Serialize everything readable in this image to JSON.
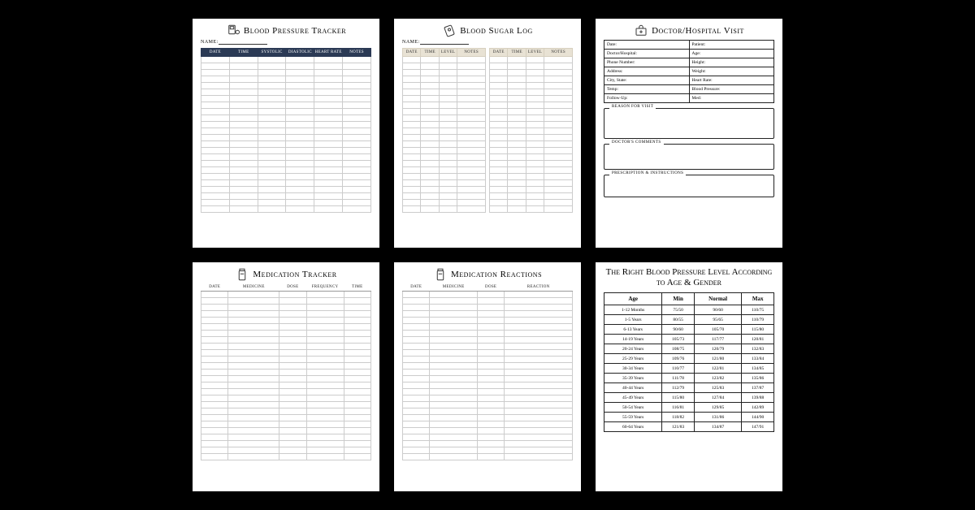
{
  "bp_tracker": {
    "title": "Blood Pressure Tracker",
    "name_label": "NAME:",
    "columns": [
      "date",
      "time",
      "systolic",
      "diastolic",
      "heart rate",
      "notes"
    ],
    "blank_rows": 24
  },
  "sugar_log": {
    "title": "Blood Sugar Log",
    "name_label": "NAME:",
    "columns": [
      "date",
      "time",
      "level",
      "notes"
    ],
    "blank_rows": 24
  },
  "doctor_visit": {
    "title": "Doctor/Hospital Visit",
    "fields_left": [
      "Date:",
      "Doctor/Hospital:",
      "Phone Number:",
      "Address:",
      "City, State:",
      "Temp:",
      "Follow-Up:"
    ],
    "fields_right": [
      "Patient:",
      "Age:",
      "Height:",
      "Weight:",
      "Heart Rate:",
      "Blood Pressure:",
      "Med:"
    ],
    "boxes": [
      "REASON FOR VISIT",
      "DOCTOR'S COMMENTS",
      "PRESCRIPTION & INSTRUCTIONS"
    ]
  },
  "med_tracker": {
    "title": "Medication Tracker",
    "columns": [
      "Date",
      "Medicine",
      "Dose",
      "Frequency",
      "Time"
    ],
    "blank_rows": 26
  },
  "med_reactions": {
    "title": "Medication Reactions",
    "columns": [
      "Date",
      "Medicine",
      "Dose",
      "Reaction"
    ],
    "blank_rows": 26
  },
  "bp_reference": {
    "title": "The Right Blood Pressure Level According to Age & Gender",
    "columns": [
      "Age",
      "Min",
      "Normal",
      "Max"
    ],
    "rows": [
      [
        "1-12 Months",
        "75/50",
        "90/60",
        "110/75"
      ],
      [
        "1-5 Years",
        "80/55",
        "95/65",
        "110/79"
      ],
      [
        "6-13 Years",
        "90/60",
        "105/70",
        "115/80"
      ],
      [
        "14-19 Years",
        "105/73",
        "117/77",
        "120/81"
      ],
      [
        "20-24 Years",
        "108/75",
        "120/79",
        "132/83"
      ],
      [
        "25-29 Years",
        "109/76",
        "121/80",
        "133/84"
      ],
      [
        "30-34 Years",
        "110/77",
        "122/81",
        "134/85"
      ],
      [
        "35-39 Years",
        "111/78",
        "123/82",
        "135/86"
      ],
      [
        "40-44 Years",
        "112/79",
        "125/83",
        "137/87"
      ],
      [
        "45-49 Years",
        "115/80",
        "127/84",
        "139/88"
      ],
      [
        "50-54 Years",
        "116/81",
        "129/85",
        "142/89"
      ],
      [
        "55-59 Years",
        "118/82",
        "131/86",
        "144/90"
      ],
      [
        "60-64 Years",
        "121/83",
        "134/87",
        "147/91"
      ]
    ]
  }
}
